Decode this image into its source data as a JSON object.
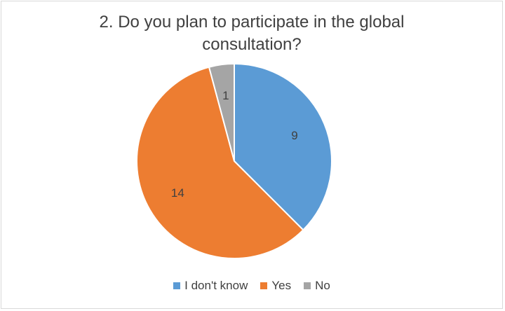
{
  "chart_data": {
    "type": "pie",
    "title_lines": [
      "2. Do you plan to participate in the global",
      "consultation?"
    ],
    "categories": [
      "I don't know",
      "Yes",
      "No"
    ],
    "values": [
      9,
      14,
      1
    ],
    "colors": [
      "#5b9bd5",
      "#ed7d31",
      "#a5a5a5"
    ],
    "data_labels": [
      "9",
      "14",
      "1"
    ],
    "legend_position": "bottom"
  }
}
